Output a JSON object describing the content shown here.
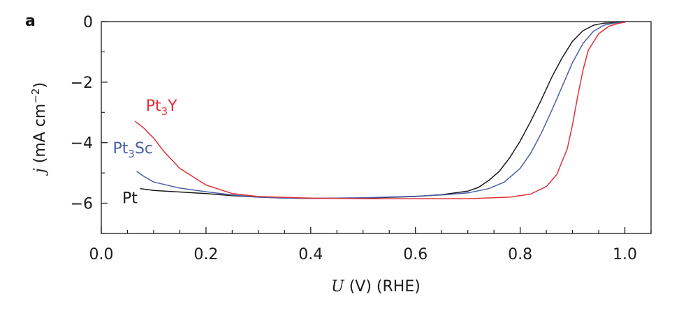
{
  "chart_data": {
    "type": "line",
    "panel_label": "a",
    "xlabel": {
      "var": "U",
      "rest": " (V) (RHE)"
    },
    "ylabel": {
      "var": "j",
      "rest": " (mA cm",
      "sup": "−2",
      "close": ")"
    },
    "xlim": [
      0.0,
      1.05
    ],
    "ylim": [
      -7,
      0
    ],
    "x_ticks": [
      0.0,
      0.2,
      0.4,
      0.6,
      0.8,
      1.0
    ],
    "x_tick_labels": [
      "0.0",
      "0.2",
      "0.4",
      "0.6",
      "0.8",
      "1.0"
    ],
    "y_ticks": [
      0,
      -2,
      -4,
      -6
    ],
    "y_tick_labels": [
      "0",
      "−2",
      "−4",
      "−6"
    ],
    "grid": false,
    "legend": "inline labels",
    "series": [
      {
        "name": "Pt",
        "label": {
          "base": "Pt",
          "sub": "",
          "tail": ""
        },
        "color": "#1a1a1a",
        "label_anchor": {
          "x": 0.04,
          "y": -6.0
        },
        "points": [
          [
            0.075,
            -5.52
          ],
          [
            0.1,
            -5.58
          ],
          [
            0.15,
            -5.63
          ],
          [
            0.2,
            -5.68
          ],
          [
            0.25,
            -5.75
          ],
          [
            0.3,
            -5.8
          ],
          [
            0.35,
            -5.83
          ],
          [
            0.4,
            -5.84
          ],
          [
            0.5,
            -5.83
          ],
          [
            0.6,
            -5.78
          ],
          [
            0.65,
            -5.72
          ],
          [
            0.7,
            -5.6
          ],
          [
            0.72,
            -5.48
          ],
          [
            0.74,
            -5.25
          ],
          [
            0.76,
            -4.95
          ],
          [
            0.78,
            -4.5
          ],
          [
            0.8,
            -3.95
          ],
          [
            0.82,
            -3.3
          ],
          [
            0.84,
            -2.6
          ],
          [
            0.86,
            -1.85
          ],
          [
            0.88,
            -1.2
          ],
          [
            0.9,
            -0.65
          ],
          [
            0.92,
            -0.3
          ],
          [
            0.94,
            -0.12
          ],
          [
            0.96,
            -0.05
          ],
          [
            1.0,
            -0.02
          ]
        ]
      },
      {
        "name": "Pt3Sc",
        "label": {
          "base": "Pt",
          "sub": "3",
          "tail": "Sc"
        },
        "color": "#4a5fa8",
        "label_anchor": {
          "x": 0.022,
          "y": -4.35
        },
        "points": [
          [
            0.068,
            -4.95
          ],
          [
            0.08,
            -5.1
          ],
          [
            0.1,
            -5.3
          ],
          [
            0.15,
            -5.5
          ],
          [
            0.2,
            -5.62
          ],
          [
            0.25,
            -5.73
          ],
          [
            0.3,
            -5.8
          ],
          [
            0.35,
            -5.83
          ],
          [
            0.4,
            -5.84
          ],
          [
            0.5,
            -5.82
          ],
          [
            0.6,
            -5.77
          ],
          [
            0.65,
            -5.73
          ],
          [
            0.7,
            -5.66
          ],
          [
            0.74,
            -5.52
          ],
          [
            0.77,
            -5.3
          ],
          [
            0.8,
            -4.85
          ],
          [
            0.82,
            -4.35
          ],
          [
            0.84,
            -3.7
          ],
          [
            0.86,
            -2.95
          ],
          [
            0.88,
            -2.15
          ],
          [
            0.9,
            -1.35
          ],
          [
            0.92,
            -0.72
          ],
          [
            0.94,
            -0.32
          ],
          [
            0.96,
            -0.12
          ],
          [
            0.98,
            -0.05
          ],
          [
            1.0,
            -0.02
          ]
        ]
      },
      {
        "name": "Pt3Y",
        "label": {
          "base": "Pt",
          "sub": "3",
          "tail": "Y"
        },
        "color": "#e0303a",
        "label_anchor": {
          "x": 0.085,
          "y": -2.95
        },
        "points": [
          [
            0.065,
            -3.3
          ],
          [
            0.08,
            -3.5
          ],
          [
            0.1,
            -3.85
          ],
          [
            0.12,
            -4.3
          ],
          [
            0.15,
            -4.85
          ],
          [
            0.2,
            -5.4
          ],
          [
            0.25,
            -5.68
          ],
          [
            0.3,
            -5.78
          ],
          [
            0.4,
            -5.83
          ],
          [
            0.5,
            -5.85
          ],
          [
            0.6,
            -5.85
          ],
          [
            0.7,
            -5.85
          ],
          [
            0.78,
            -5.8
          ],
          [
            0.82,
            -5.7
          ],
          [
            0.85,
            -5.45
          ],
          [
            0.87,
            -5.05
          ],
          [
            0.89,
            -4.2
          ],
          [
            0.9,
            -3.4
          ],
          [
            0.91,
            -2.45
          ],
          [
            0.92,
            -1.6
          ],
          [
            0.93,
            -0.95
          ],
          [
            0.95,
            -0.4
          ],
          [
            0.97,
            -0.15
          ],
          [
            0.99,
            -0.05
          ],
          [
            1.0,
            -0.02
          ]
        ]
      }
    ]
  }
}
